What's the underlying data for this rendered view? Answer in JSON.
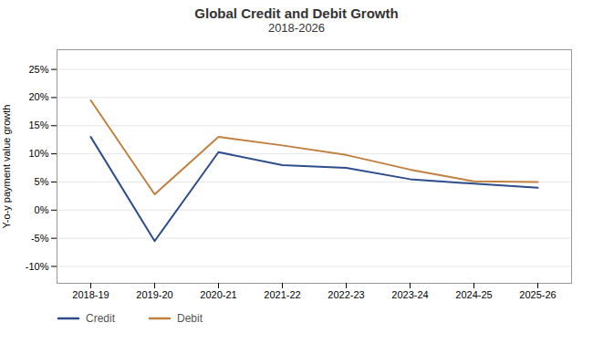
{
  "chart_data": {
    "type": "line",
    "title": "Global Credit and Debit Growth",
    "subtitle": "2018-2026",
    "ylabel": "Y-o-y payment value growth",
    "categories": [
      "2018-19",
      "2019-20",
      "2020-21",
      "2021-22",
      "2022-23",
      "2023-24",
      "2024-25",
      "2025-26"
    ],
    "series": [
      {
        "name": "Credit",
        "color": "#2E4D8A",
        "values": [
          0.13,
          -0.055,
          0.103,
          0.08,
          0.075,
          0.055,
          0.047,
          0.04
        ]
      },
      {
        "name": "Debit",
        "color": "#BF8040",
        "values": [
          0.195,
          0.028,
          0.13,
          0.115,
          0.098,
          0.072,
          0.051,
          0.05
        ]
      }
    ],
    "ylim": [
      -0.13,
      0.285
    ],
    "yticks": [
      {
        "value": -0.1,
        "label": "-10%"
      },
      {
        "value": -0.05,
        "label": "-5%"
      },
      {
        "value": 0.0,
        "label": "0%"
      },
      {
        "value": 0.05,
        "label": "5%"
      },
      {
        "value": 0.1,
        "label": "10%"
      },
      {
        "value": 0.15,
        "label": "15%"
      },
      {
        "value": 0.2,
        "label": "20%"
      },
      {
        "value": 0.25,
        "label": "25%"
      }
    ],
    "grid": true,
    "legend": "bottom"
  }
}
